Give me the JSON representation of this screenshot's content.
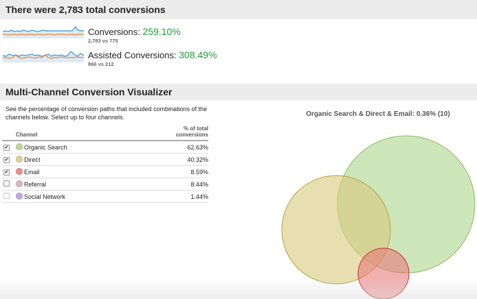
{
  "header": {
    "title": "There were 2,783 total conversions"
  },
  "metrics": [
    {
      "label": "Conversions:",
      "pct": "259.10%",
      "compare": "2,783 vs 775"
    },
    {
      "label": "Assisted Conversions:",
      "pct": "308.49%",
      "compare": "866 vs 212"
    }
  ],
  "visualizer": {
    "title": "Multi-Channel Conversion Visualizer",
    "description": "See the percentage of conversion paths that included combinations of the channels below. Select up to four channels.",
    "col_channel": "Channel",
    "col_pct": "% of total conversions",
    "rows": [
      {
        "channel": "Organic Search",
        "pct": "62.63%",
        "checked": true,
        "color": "#b8dc9c"
      },
      {
        "channel": "Direct",
        "pct": "40.32%",
        "checked": true,
        "color": "#e0d296"
      },
      {
        "channel": "Email",
        "pct": "8.59%",
        "checked": true,
        "color": "#ee8f8f"
      },
      {
        "channel": "Referral",
        "pct": "8.44%",
        "checked": false,
        "color": "#dbb6c4"
      },
      {
        "channel": "Social Network",
        "pct": "1.44%",
        "checked": false,
        "color": "#c3a6e6"
      }
    ],
    "venn_label": "Organic Search & Direct & Email: 0.36% (10)"
  },
  "colors": {
    "positive": "#1e9e3a",
    "series_current": "#3a9ad9",
    "series_previous": "#f0862a"
  }
}
